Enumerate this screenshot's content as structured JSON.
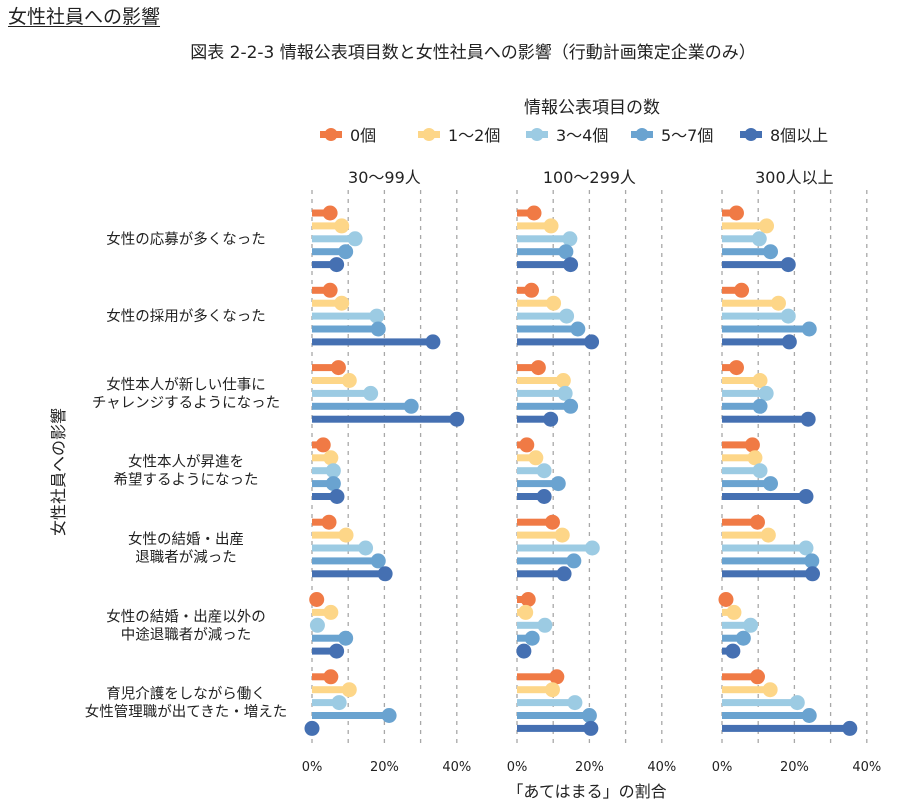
{
  "page": {
    "section_title": "女性社員への影響",
    "figure_title": "図表 2-2-3 情報公表項目数と女性社員への影響（行動計画策定企業のみ）"
  },
  "chart_data": {
    "type": "bar",
    "subtype": "lollipop-horizontal-faceted",
    "title": "図表 2-2-3 情報公表項目数と女性社員への影響（行動計画策定企業のみ）",
    "xlabel": "「あてはまる」の割合",
    "ylabel": "女性社員への影響",
    "legend_title": "情報公表項目の数",
    "legend_position": "top",
    "xlim": [
      0,
      40
    ],
    "x_ticks": [
      "0%",
      "20%",
      "40%"
    ],
    "x_gridlines": [
      0,
      10,
      20,
      30,
      40
    ],
    "grid": "vertical-dashed",
    "panels": [
      "30〜99人",
      "100〜299人",
      "300人以上"
    ],
    "categories": [
      "女性の応募が多くなった",
      "女性の採用が多くなった",
      "女性本人が新しい仕事に\nチャレンジするようになった",
      "女性本人が昇進を\n希望するようになった",
      "女性の結婚・出産\n退職者が減った",
      "女性の結婚・出産以外の\n中途退職者が減った",
      "育児介護をしながら働く\n女性管理職が出てきた・増えた"
    ],
    "series": [
      {
        "name": "0個",
        "color": "#f07a45",
        "values": [
          [
            5.0,
            5.0,
            7.3,
            3.1,
            4.7,
            1.3,
            5.2
          ],
          [
            4.7,
            4.0,
            5.9,
            2.7,
            9.8,
            3.1,
            11.0
          ],
          [
            4.0,
            5.4,
            4.0,
            8.4,
            9.8,
            1.1,
            9.8
          ]
        ]
      },
      {
        "name": "1〜2個",
        "color": "#fdd688",
        "values": [
          [
            8.2,
            8.2,
            10.3,
            5.2,
            9.4,
            5.2,
            10.3
          ],
          [
            9.4,
            10.1,
            12.8,
            5.2,
            12.5,
            2.4,
            9.8
          ],
          [
            12.3,
            15.6,
            10.5,
            9.1,
            12.8,
            3.3,
            13.3
          ]
        ]
      },
      {
        "name": "3〜4個",
        "color": "#9ccbe3",
        "values": [
          [
            11.9,
            17.9,
            16.2,
            5.9,
            14.8,
            1.5,
            7.5
          ],
          [
            14.6,
            13.7,
            13.3,
            7.5,
            20.8,
            7.7,
            16.0
          ],
          [
            10.3,
            18.3,
            12.2,
            10.5,
            23.2,
            7.9,
            20.8
          ]
        ]
      },
      {
        "name": "5〜7個",
        "color": "#6aa3d0",
        "values": [
          [
            9.3,
            18.3,
            27.4,
            5.9,
            18.3,
            9.3,
            21.3
          ],
          [
            13.5,
            16.8,
            14.8,
            11.4,
            15.7,
            4.2,
            20.0
          ],
          [
            13.4,
            24.1,
            10.5,
            13.4,
            24.8,
            5.9,
            24.1
          ]
        ]
      },
      {
        "name": "8個以上",
        "color": "#4570b2",
        "values": [
          [
            6.8,
            33.4,
            40.0,
            6.9,
            20.2,
            6.8,
            0.0
          ],
          [
            14.8,
            20.6,
            9.3,
            7.5,
            13.0,
            1.9,
            20.4
          ],
          [
            18.3,
            18.6,
            23.8,
            23.2,
            25.0,
            3.0,
            35.3
          ]
        ]
      }
    ]
  }
}
